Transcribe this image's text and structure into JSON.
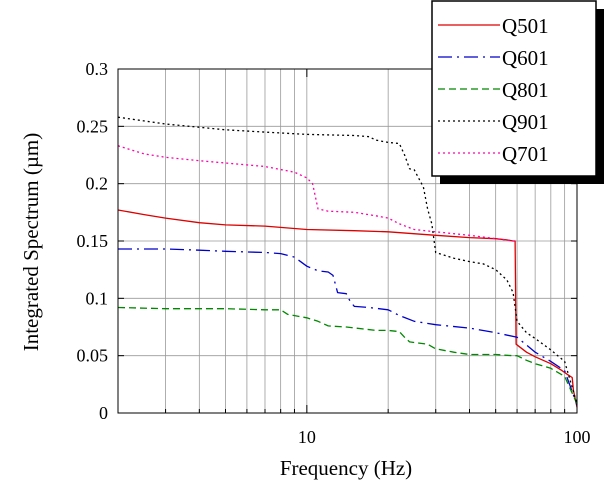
{
  "chart_data": {
    "type": "line",
    "title": "",
    "xlabel": "Frequency (Hz)",
    "ylabel": "Integrated Spectrum (µm)",
    "xscale": "log",
    "xlim": [
      2,
      100
    ],
    "ylim": [
      0,
      0.3
    ],
    "grid": true,
    "legend_position": "top-right",
    "x_tick_labels": [
      {
        "value": 10,
        "label": "10"
      },
      {
        "value": 100,
        "label": "100"
      }
    ],
    "y_tick_labels": [
      {
        "value": 0,
        "label": "0"
      },
      {
        "value": 0.05,
        "label": "0.05"
      },
      {
        "value": 0.1,
        "label": "0.1"
      },
      {
        "value": 0.15,
        "label": "0.15"
      },
      {
        "value": 0.2,
        "label": "0.2"
      },
      {
        "value": 0.25,
        "label": "0.25"
      },
      {
        "value": 0.3,
        "label": "0.3"
      }
    ],
    "series": [
      {
        "name": "Q501",
        "color": "#dd0000",
        "dash": "solid",
        "points": [
          [
            2.0,
            0.177
          ],
          [
            2.5,
            0.173
          ],
          [
            3,
            0.17
          ],
          [
            4,
            0.166
          ],
          [
            5,
            0.164
          ],
          [
            7,
            0.163
          ],
          [
            10,
            0.16
          ],
          [
            15,
            0.159
          ],
          [
            20,
            0.158
          ],
          [
            30,
            0.155
          ],
          [
            40,
            0.153
          ],
          [
            50,
            0.152
          ],
          [
            55,
            0.151
          ],
          [
            58,
            0.15
          ],
          [
            59,
            0.15
          ],
          [
            59.5,
            0.06
          ],
          [
            65,
            0.053
          ],
          [
            70,
            0.049
          ],
          [
            80,
            0.043
          ],
          [
            88,
            0.037
          ],
          [
            93,
            0.033
          ],
          [
            96,
            0.031
          ],
          [
            97,
            0.02
          ],
          [
            100,
            0.005
          ]
        ]
      },
      {
        "name": "Q601",
        "color": "#0000cc",
        "dash": "longdash",
        "points": [
          [
            2.0,
            0.143
          ],
          [
            3,
            0.143
          ],
          [
            4,
            0.142
          ],
          [
            5,
            0.141
          ],
          [
            7,
            0.14
          ],
          [
            8,
            0.139
          ],
          [
            9,
            0.136
          ],
          [
            10,
            0.128
          ],
          [
            11,
            0.124
          ],
          [
            12,
            0.123
          ],
          [
            12.5,
            0.12
          ],
          [
            13,
            0.105
          ],
          [
            14,
            0.104
          ],
          [
            14.5,
            0.097
          ],
          [
            15,
            0.093
          ],
          [
            17,
            0.092
          ],
          [
            20,
            0.09
          ],
          [
            22,
            0.085
          ],
          [
            25,
            0.08
          ],
          [
            30,
            0.077
          ],
          [
            40,
            0.074
          ],
          [
            50,
            0.07
          ],
          [
            60,
            0.066
          ],
          [
            70,
            0.053
          ],
          [
            80,
            0.045
          ],
          [
            90,
            0.037
          ],
          [
            100,
            0.007
          ]
        ]
      },
      {
        "name": "Q801",
        "color": "#008800",
        "dash": "dash",
        "points": [
          [
            2.0,
            0.092
          ],
          [
            3,
            0.091
          ],
          [
            5,
            0.091
          ],
          [
            7,
            0.09
          ],
          [
            8,
            0.09
          ],
          [
            8.5,
            0.086
          ],
          [
            10,
            0.083
          ],
          [
            11,
            0.08
          ],
          [
            12,
            0.076
          ],
          [
            14,
            0.075
          ],
          [
            18,
            0.072
          ],
          [
            20,
            0.072
          ],
          [
            22,
            0.071
          ],
          [
            23,
            0.066
          ],
          [
            24,
            0.062
          ],
          [
            28,
            0.06
          ],
          [
            30,
            0.056
          ],
          [
            35,
            0.053
          ],
          [
            40,
            0.051
          ],
          [
            50,
            0.051
          ],
          [
            58,
            0.05
          ],
          [
            60,
            0.05
          ],
          [
            65,
            0.046
          ],
          [
            70,
            0.043
          ],
          [
            80,
            0.039
          ],
          [
            90,
            0.032
          ],
          [
            100,
            0.008
          ]
        ]
      },
      {
        "name": "Q901",
        "color": "#000000",
        "dash": "dot",
        "points": [
          [
            2.0,
            0.258
          ],
          [
            3,
            0.252
          ],
          [
            5,
            0.247
          ],
          [
            7,
            0.245
          ],
          [
            10,
            0.243
          ],
          [
            15,
            0.242
          ],
          [
            17,
            0.241
          ],
          [
            18,
            0.238
          ],
          [
            20,
            0.236
          ],
          [
            22,
            0.235
          ],
          [
            23,
            0.225
          ],
          [
            24,
            0.213
          ],
          [
            25,
            0.212
          ],
          [
            27,
            0.197
          ],
          [
            28,
            0.178
          ],
          [
            29,
            0.165
          ],
          [
            30,
            0.14
          ],
          [
            35,
            0.135
          ],
          [
            40,
            0.132
          ],
          [
            45,
            0.13
          ],
          [
            50,
            0.125
          ],
          [
            55,
            0.116
          ],
          [
            58,
            0.105
          ],
          [
            60,
            0.08
          ],
          [
            65,
            0.07
          ],
          [
            70,
            0.065
          ],
          [
            80,
            0.055
          ],
          [
            90,
            0.045
          ],
          [
            100,
            0.008
          ]
        ]
      },
      {
        "name": "Q701",
        "color": "#ff00aa",
        "dash": "dot",
        "points": [
          [
            2.0,
            0.233
          ],
          [
            2.5,
            0.226
          ],
          [
            3,
            0.223
          ],
          [
            4,
            0.22
          ],
          [
            5,
            0.218
          ],
          [
            7,
            0.215
          ],
          [
            9,
            0.21
          ],
          [
            10,
            0.205
          ],
          [
            10.5,
            0.2
          ],
          [
            11,
            0.178
          ],
          [
            12,
            0.176
          ],
          [
            15,
            0.175
          ],
          [
            18,
            0.172
          ],
          [
            20,
            0.17
          ],
          [
            22,
            0.165
          ],
          [
            25,
            0.16
          ],
          [
            30,
            0.158
          ],
          [
            40,
            0.155
          ],
          [
            50,
            0.152
          ],
          [
            58,
            0.15
          ],
          [
            60,
            0.15
          ]
        ]
      }
    ]
  }
}
